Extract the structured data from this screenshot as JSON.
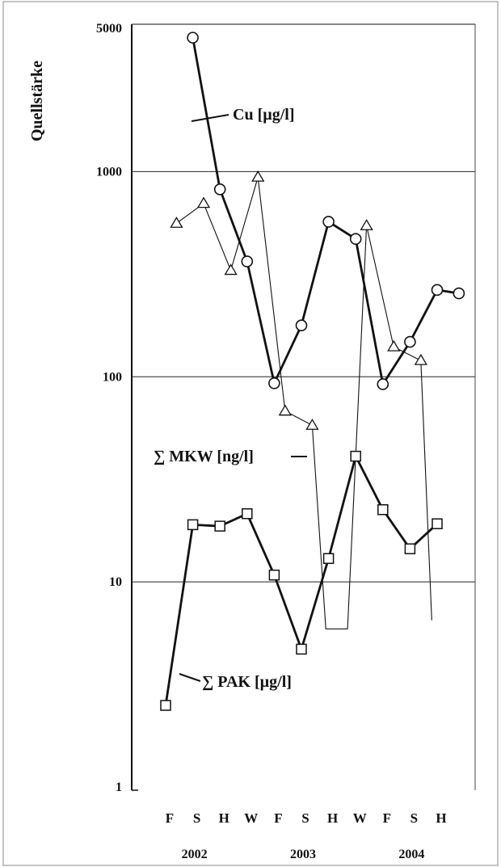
{
  "chart_data": {
    "type": "line",
    "title": "",
    "ylabel": "Quellstärke",
    "xlabel": "",
    "yscale": "log",
    "ylim": [
      1,
      5000
    ],
    "yticks": [
      5000,
      1000,
      100,
      10,
      1
    ],
    "ytick_labels": [
      "5000",
      "1000",
      "100",
      "10",
      "1"
    ],
    "gridlines_at": [
      1000,
      100,
      10
    ],
    "categories": [
      "F",
      "S",
      "H",
      "W",
      "F",
      "S",
      "H",
      "W",
      "F",
      "S",
      "H"
    ],
    "years": [
      {
        "label": "2002",
        "under_category": 1
      },
      {
        "label": "2003",
        "under_category": 5
      },
      {
        "label": "2004",
        "under_category": 9
      }
    ],
    "series": [
      {
        "name": "Cu [µg/l]",
        "marker": "circle",
        "style": "bold",
        "points": [
          {
            "x": 1.0,
            "y": 4500
          },
          {
            "x": 2.0,
            "y": 820
          },
          {
            "x": 3.0,
            "y": 365
          },
          {
            "x": 4.0,
            "y": 93
          },
          {
            "x": 5.0,
            "y": 178
          },
          {
            "x": 6.0,
            "y": 570
          },
          {
            "x": 7.0,
            "y": 470
          },
          {
            "x": 8.0,
            "y": 92
          },
          {
            "x": 9.0,
            "y": 148
          },
          {
            "x": 10.0,
            "y": 265
          },
          {
            "x": 10.8,
            "y": 255
          }
        ]
      },
      {
        "name": "∑ MKW [ng/l]",
        "marker": "triangle",
        "style": "thin",
        "points": [
          {
            "x": 0.4,
            "y": 560
          },
          {
            "x": 1.4,
            "y": 700
          },
          {
            "x": 2.4,
            "y": 330
          },
          {
            "x": 3.4,
            "y": 940
          },
          {
            "x": 4.4,
            "y": 68
          },
          {
            "x": 5.4,
            "y": 58
          },
          {
            "x": 5.9,
            "y": 5.9
          },
          {
            "x": 6.7,
            "y": 5.9
          },
          {
            "x": 7.4,
            "y": 545
          },
          {
            "x": 8.4,
            "y": 140
          },
          {
            "x": 9.4,
            "y": 120
          },
          {
            "x": 9.8,
            "y": 6.5
          }
        ]
      },
      {
        "name": "∑ PAK [µg/l]",
        "marker": "square",
        "style": "bold",
        "points": [
          {
            "x": 0.0,
            "y": 2.5
          },
          {
            "x": 1.0,
            "y": 19.0
          },
          {
            "x": 2.0,
            "y": 18.7
          },
          {
            "x": 3.0,
            "y": 21.5
          },
          {
            "x": 4.0,
            "y": 10.8
          },
          {
            "x": 5.0,
            "y": 4.7
          },
          {
            "x": 6.0,
            "y": 13.0
          },
          {
            "x": 7.0,
            "y": 41.0
          },
          {
            "x": 8.0,
            "y": 22.5
          },
          {
            "x": 9.0,
            "y": 14.5
          },
          {
            "x": 10.0,
            "y": 19.2
          }
        ]
      }
    ],
    "annotations": [
      {
        "text": "Cu [µg/l]",
        "series": 0
      },
      {
        "text": "∑ MKW [ng/l]",
        "series": 1
      },
      {
        "text": "∑ PAK [µg/l]",
        "series": 2
      }
    ],
    "grid": true,
    "legend": "none"
  }
}
